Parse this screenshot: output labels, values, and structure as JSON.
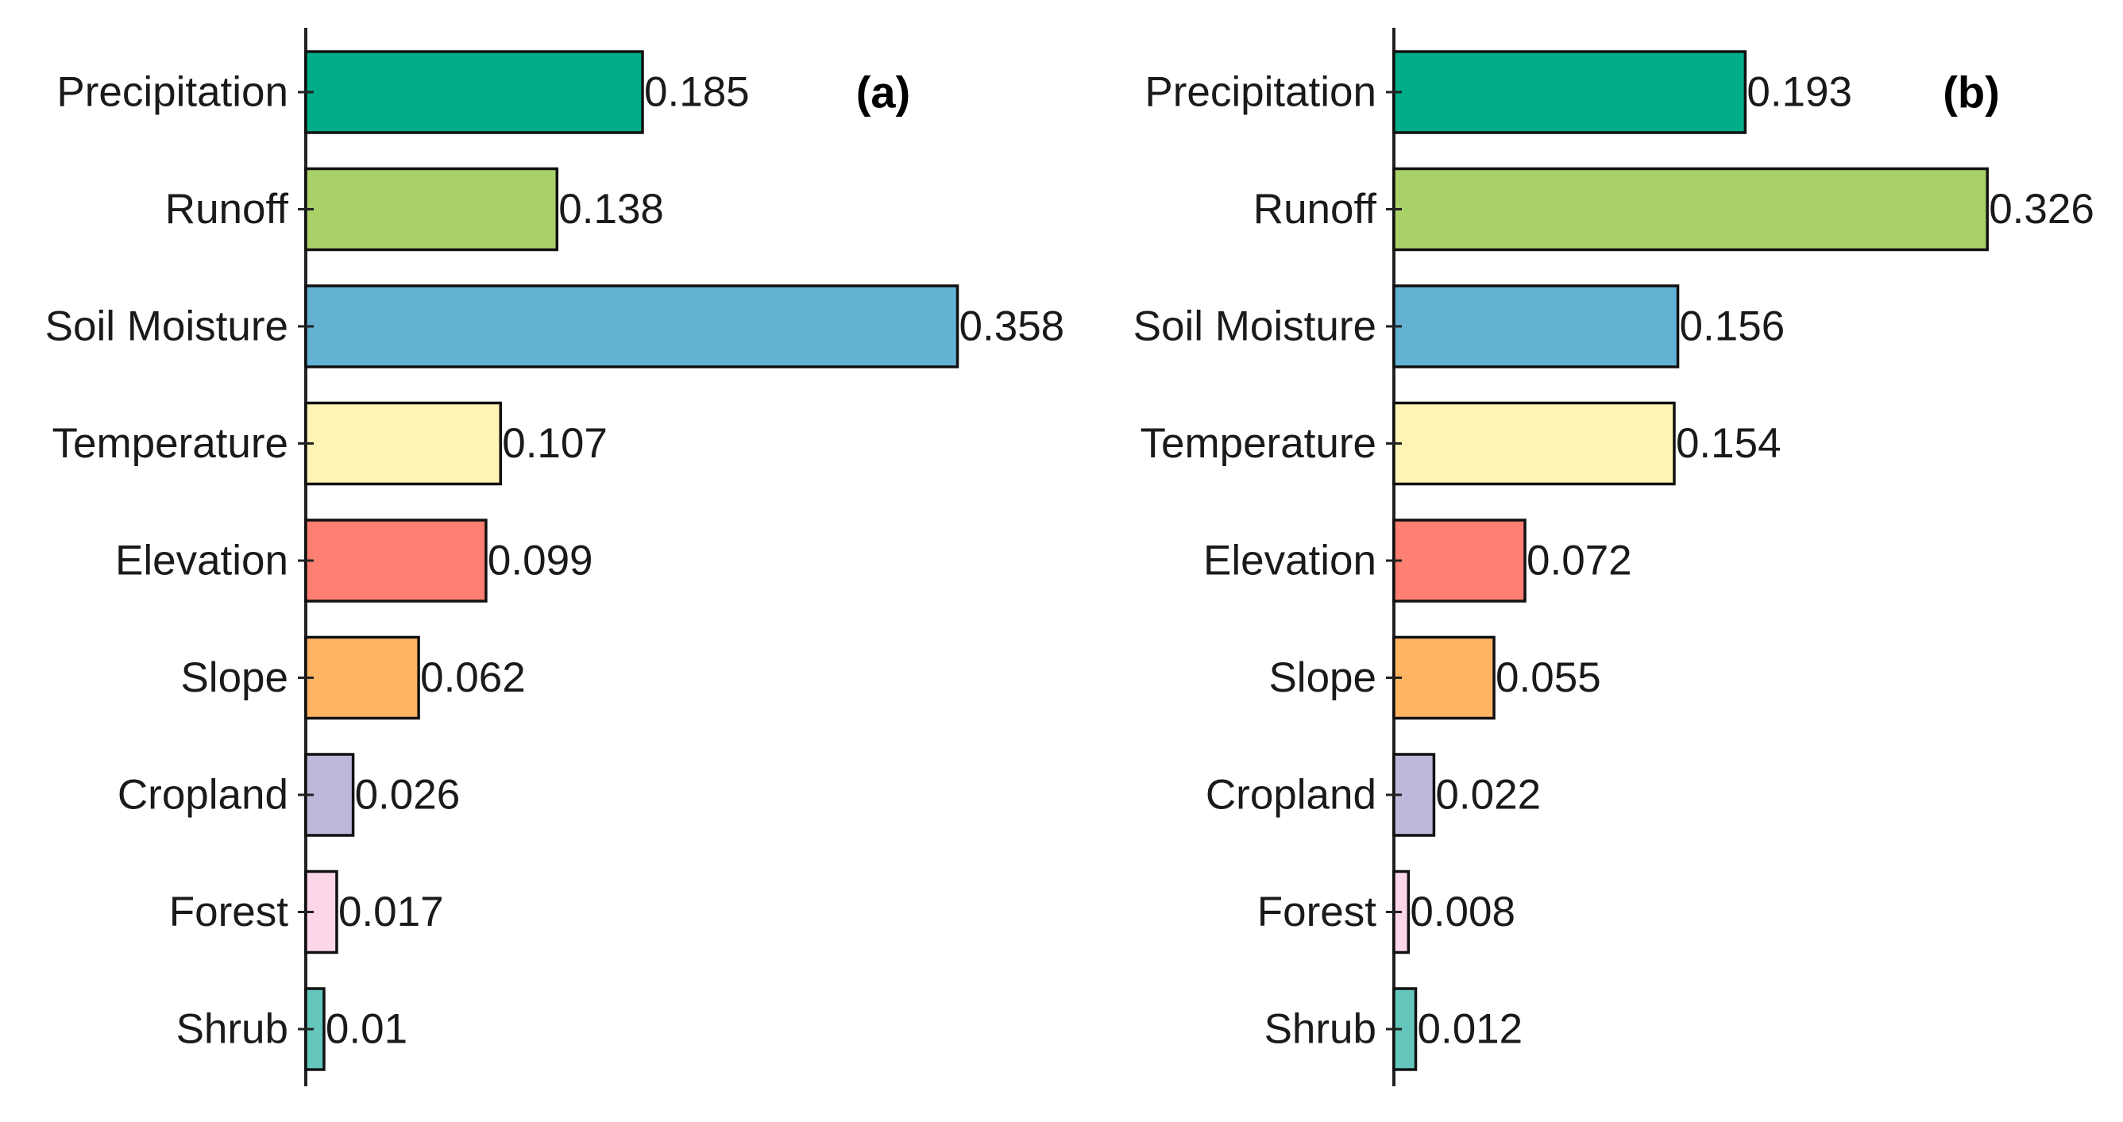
{
  "chart_data": [
    {
      "type": "bar",
      "orientation": "horizontal",
      "panel_label": "(a)",
      "categories": [
        "Precipitation",
        "Runoff",
        "Soil Moisture",
        "Temperature",
        "Elevation",
        "Slope",
        "Cropland",
        "Forest",
        "Shrub"
      ],
      "values": [
        0.185,
        0.138,
        0.358,
        0.107,
        0.099,
        0.062,
        0.026,
        0.017,
        0.01
      ],
      "value_labels": [
        "0.185",
        "0.138",
        "0.358",
        "0.107",
        "0.099",
        "0.062",
        "0.026",
        "0.017",
        "0.01"
      ],
      "colors": [
        "#00AD8B",
        "#A9D16A",
        "#63B2D4",
        "#FFF4B3",
        "#FF7F72",
        "#FFB464",
        "#BEB8DB",
        "#FDD6EA",
        "#64C6BC"
      ],
      "title": "",
      "xlabel": "",
      "ylabel": "",
      "xlim": [
        0,
        0.4
      ],
      "grid": false
    },
    {
      "type": "bar",
      "orientation": "horizontal",
      "panel_label": "(b)",
      "categories": [
        "Precipitation",
        "Runoff",
        "Soil Moisture",
        "Temperature",
        "Elevation",
        "Slope",
        "Cropland",
        "Forest",
        "Shrub"
      ],
      "values": [
        0.193,
        0.326,
        0.156,
        0.154,
        0.072,
        0.055,
        0.022,
        0.008,
        0.012
      ],
      "value_labels": [
        "0.193",
        "0.326",
        "0.156",
        "0.154",
        "0.072",
        "0.055",
        "0.022",
        "0.008",
        "0.012"
      ],
      "colors": [
        "#00AD8B",
        "#A9D16A",
        "#63B2D4",
        "#FFF4B3",
        "#FF7F72",
        "#FFB464",
        "#BEB8DB",
        "#FDD6EA",
        "#64C6BC"
      ],
      "title": "",
      "xlabel": "",
      "ylabel": "",
      "xlim": [
        0,
        0.4
      ],
      "grid": false
    }
  ]
}
